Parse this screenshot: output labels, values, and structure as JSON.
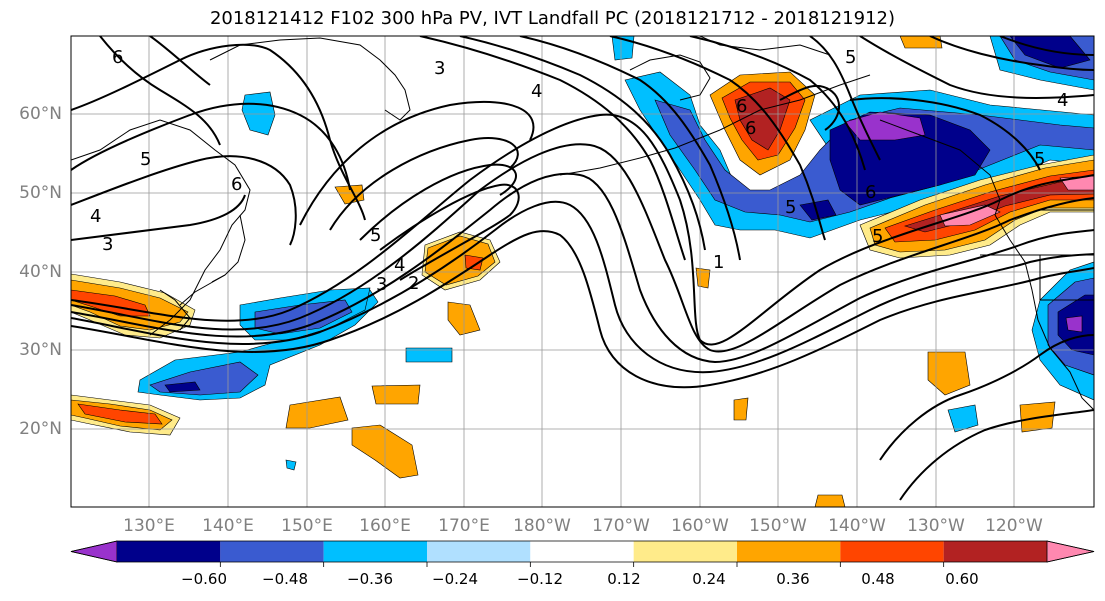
{
  "title": "2018121412 F102 300 hPa PV, IVT Landfall PC (2018121712 - 2018121912)",
  "lat_labels": [
    "60°N",
    "50°N",
    "40°N",
    "30°N",
    "20°N"
  ],
  "lon_labels": [
    "130°E",
    "140°E",
    "150°E",
    "160°E",
    "170°E",
    "180°W",
    "170°W",
    "160°W",
    "150°W",
    "140°W",
    "130°W",
    "120°W"
  ],
  "colorbar": {
    "tick_labels": [
      "−0.60",
      "−0.48",
      "−0.36",
      "−0.24",
      "−0.12",
      "0.12",
      "0.24",
      "0.36",
      "0.48",
      "0.60"
    ],
    "colors": [
      "#9932CC",
      "#00008B",
      "#3A5BD0",
      "#00BFFF",
      "#B0E0FF",
      "#FFFFFF",
      "#FFEB8A",
      "#FFA500",
      "#FF4500",
      "#B22222",
      "#FF88B0"
    ]
  },
  "contour_labels": [
    "6",
    "3",
    "4",
    "5",
    "6",
    "4",
    "5",
    "6",
    "3",
    "5",
    "3",
    "4",
    "2",
    "5",
    "6",
    "1",
    "6",
    "5",
    "4",
    "5"
  ],
  "map": {
    "projection": "cylindrical",
    "lon_range": [
      120,
      250
    ],
    "lat_range": [
      10,
      70
    ],
    "grid": true,
    "line_field": "300 hPa PV",
    "shaded_field": "IVT Landfall PC"
  }
}
